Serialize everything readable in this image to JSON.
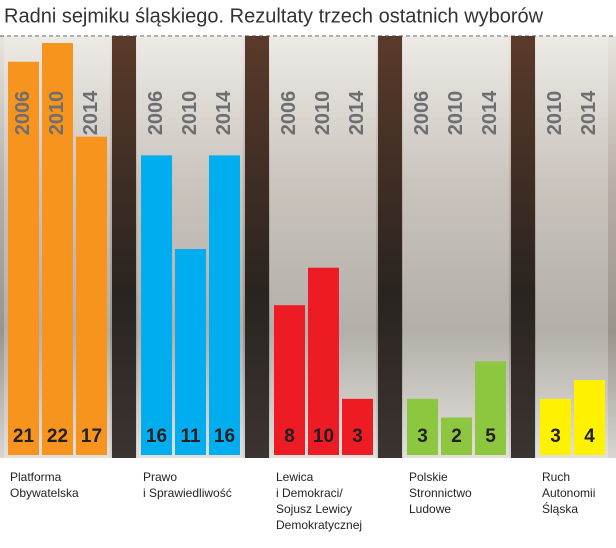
{
  "chart_data": {
    "type": "bar",
    "title": "Radni sejmiku śląskiego. Rezultaty trzech ostatnich wyborów",
    "groups": [
      {
        "label": [
          "Platforma",
          "Obywatelska"
        ],
        "color": "#f7941d",
        "categories": [
          "2006",
          "2010",
          "2014"
        ],
        "values": [
          21,
          22,
          17
        ]
      },
      {
        "label": [
          "Prawo",
          "i Sprawiedliwość"
        ],
        "color": "#00aeef",
        "categories": [
          "2006",
          "2010",
          "2014"
        ],
        "values": [
          16,
          11,
          16
        ]
      },
      {
        "label": [
          "Lewica",
          "i Demokraci/",
          "Sojusz Lewicy",
          "Demokratycznej"
        ],
        "color": "#ed1c24",
        "categories": [
          "2006",
          "2010",
          "2014"
        ],
        "values": [
          8,
          10,
          3
        ]
      },
      {
        "label": [
          "Polskie",
          "Stronnictwo",
          "Ludowe"
        ],
        "color": "#8dc63f",
        "categories": [
          "2006",
          "2010",
          "2014"
        ],
        "values": [
          3,
          2,
          5
        ]
      },
      {
        "label": [
          "Ruch",
          "Autonomii",
          "Śląska"
        ],
        "color": "#fff200",
        "categories": [
          "2010",
          "2014"
        ],
        "values": [
          3,
          4
        ]
      }
    ]
  }
}
